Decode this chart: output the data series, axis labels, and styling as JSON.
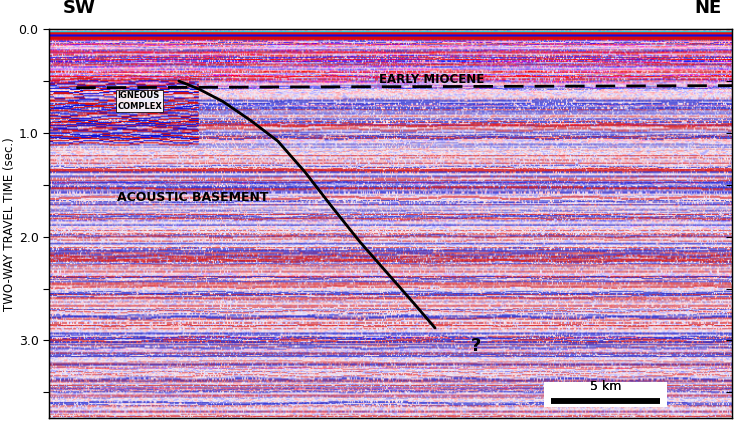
{
  "ylabel": "TWO-WAY TRAVEL TIME (sec.)",
  "ylim": [
    0.0,
    3.75
  ],
  "xlim": [
    0,
    1
  ],
  "yticks": [
    0.0,
    0.5,
    1.0,
    1.5,
    2.0,
    2.5,
    3.0,
    3.5
  ],
  "ytick_labels": [
    "0.0",
    "",
    "1.0",
    "",
    "2.0",
    "",
    "3.0",
    ""
  ],
  "label_sw": "SW",
  "label_ne": "NE",
  "early_miocene_label": "EARLY MIOCENE",
  "igneous_complex_label": "IGNEOUS\nCOMPLEX",
  "acoustic_basement_label": "ACOUSTIC BASEMENT",
  "question_mark": "?",
  "scale_bar_label": "5 km",
  "fault_line_x": [
    0.19,
    0.22,
    0.255,
    0.295,
    0.335,
    0.375,
    0.415,
    0.455,
    0.495,
    0.535,
    0.565
  ],
  "fault_line_y": [
    0.5,
    0.58,
    0.7,
    0.88,
    1.08,
    1.38,
    1.72,
    2.05,
    2.35,
    2.65,
    2.88
  ],
  "dashed_line_x_start": 0.04,
  "dashed_line_x_end": 1.0,
  "dashed_line_y_start": 0.565,
  "dashed_line_y_end": 0.545,
  "noise_seed": 42
}
